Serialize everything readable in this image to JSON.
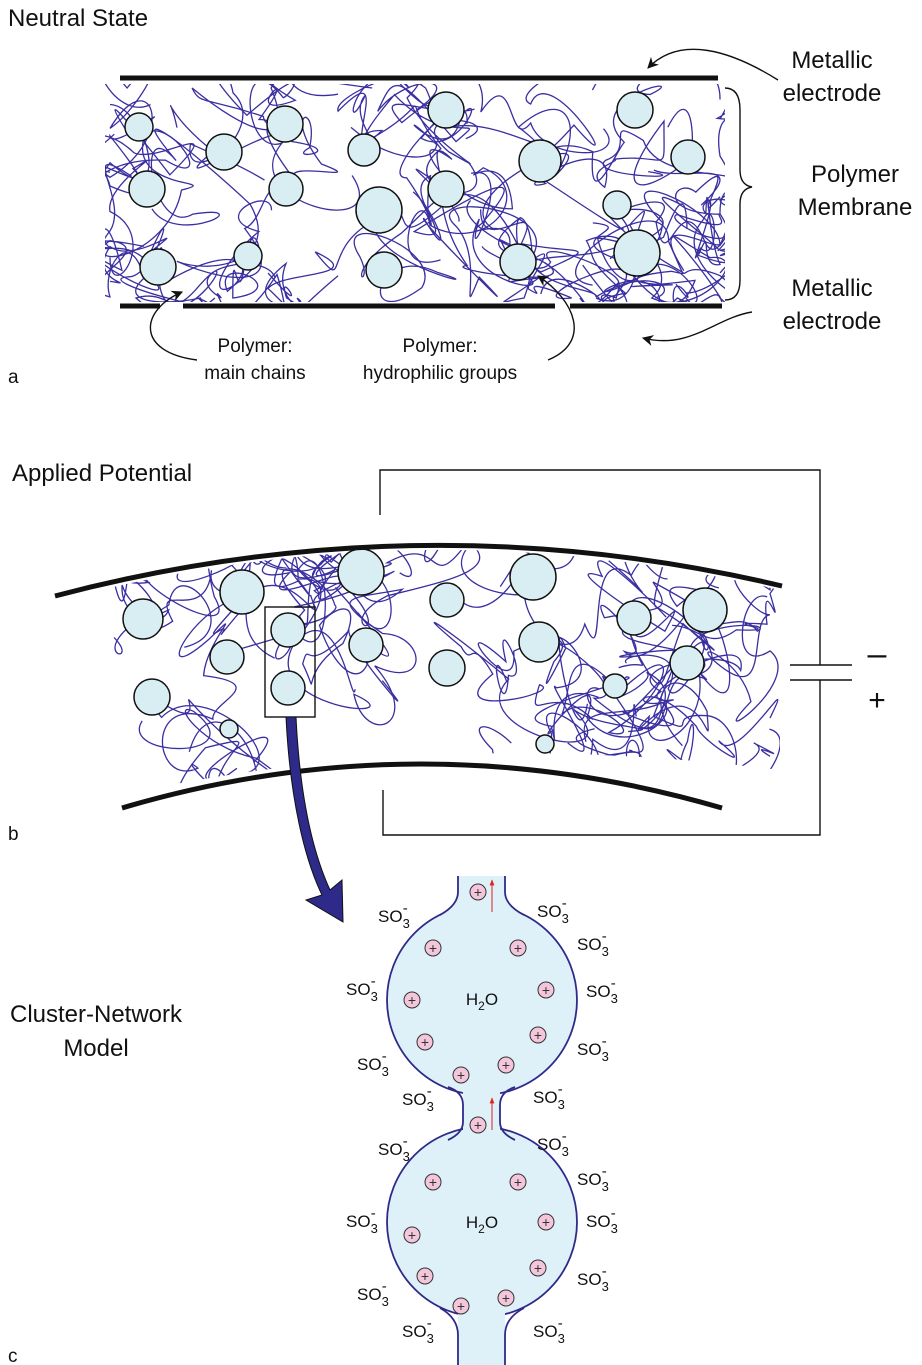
{
  "panel_a": {
    "title": "Neutral State",
    "letter": "a",
    "top_electrode": [
      "Metallic",
      "electrode"
    ],
    "membrane": [
      "Polymer",
      "Membrane"
    ],
    "bottom_electrode": [
      "Metallic",
      "electrode"
    ],
    "main_chains": [
      "Polymer:",
      "main chains"
    ],
    "hydrophilic": [
      "Polymer:",
      "hydrophilic groups"
    ]
  },
  "panel_b": {
    "title": "Applied Potential",
    "letter": "b",
    "minus": "–",
    "plus": "+"
  },
  "panel_c": {
    "title": [
      "Cluster-Network",
      "Model"
    ],
    "letter": "c",
    "water": {
      "h": "H",
      "sub": "2",
      "o": "O"
    },
    "sulfonate": {
      "base": "SO",
      "sub": "3",
      "charge": "-"
    },
    "cation": "+"
  }
}
